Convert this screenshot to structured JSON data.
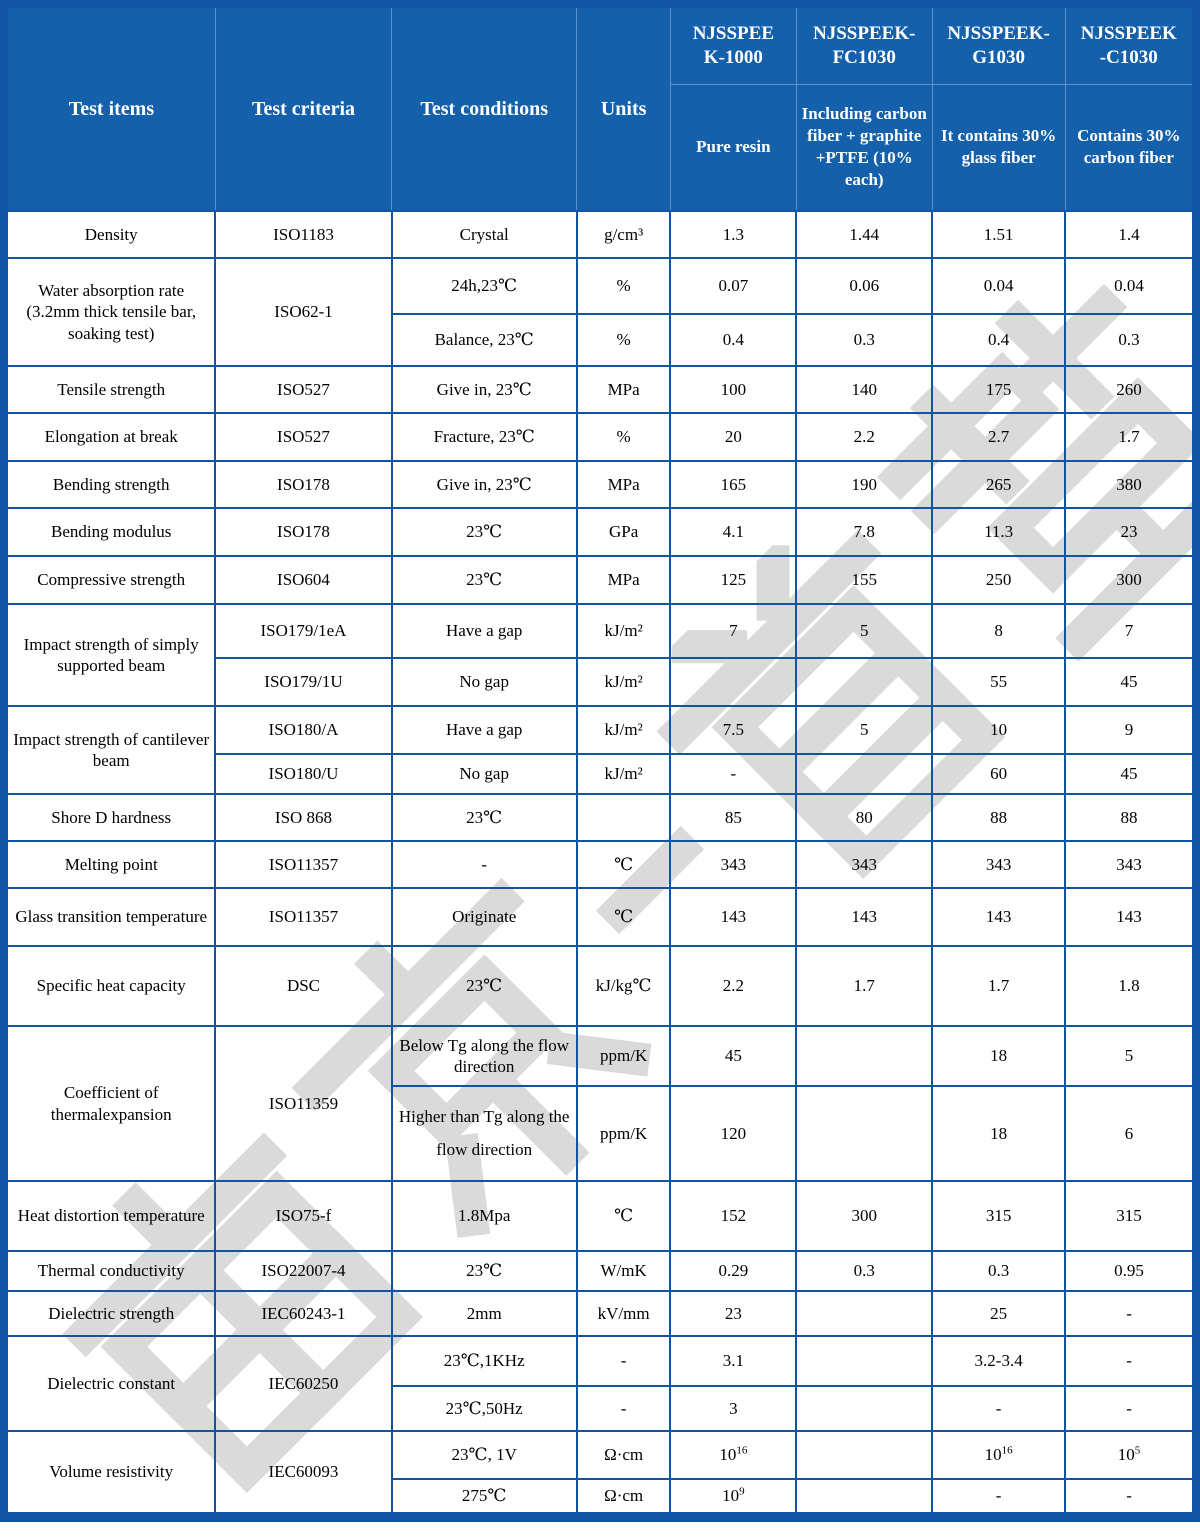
{
  "watermark": {
    "text": "南京-首塑",
    "color": "#d9d9d9"
  },
  "header": {
    "cols": [
      "Test items",
      "Test criteria",
      "Test conditions",
      "Units"
    ],
    "products": [
      {
        "name": [
          "NJSSPEE",
          "K-1000"
        ],
        "desc": "Pure resin"
      },
      {
        "name": [
          "NJSSPEEK-",
          "FC1030"
        ],
        "desc": "Including carbon fiber + graphite +PTFE (10% each)"
      },
      {
        "name": [
          "NJSSPEEK-",
          "G1030"
        ],
        "desc": "It contains 30% glass fiber"
      },
      {
        "name": [
          "NJSSPEEK",
          "-C1030"
        ],
        "desc": "Contains 30% carbon fiber"
      }
    ]
  },
  "rows": [
    {
      "item": "Density",
      "criteria": "ISO1183",
      "condition": "Crystal",
      "unit": "g/cm³",
      "values": [
        "1.3",
        "1.44",
        "1.51",
        "1.4"
      ]
    },
    {
      "item": "Water absorption rate (3.2mm thick tensile bar, soaking test)",
      "criteria": "ISO62-1",
      "condition": "24h,23℃",
      "unit": "%",
      "values": [
        "0.07",
        "0.06",
        "0.04",
        "0.04"
      ]
    },
    {
      "condition": "Balance, 23℃",
      "unit": "%",
      "values": [
        "0.4",
        "0.3",
        "0.4",
        "0.3"
      ]
    },
    {
      "item": "Tensile strength",
      "criteria": "ISO527",
      "condition": "Give in, 23℃",
      "unit": "MPa",
      "values": [
        "100",
        "140",
        "175",
        "260"
      ]
    },
    {
      "item": "Elongation at break",
      "criteria": "ISO527",
      "condition": "Fracture, 23℃",
      "unit": "%",
      "values": [
        "20",
        "2.2",
        "2.7",
        "1.7"
      ]
    },
    {
      "item": "Bending strength",
      "criteria": "ISO178",
      "condition": "Give in, 23℃",
      "unit": "MPa",
      "values": [
        "165",
        "190",
        "265",
        "380"
      ]
    },
    {
      "item": "Bending modulus",
      "criteria": "ISO178",
      "condition": "23℃",
      "unit": "GPa",
      "values": [
        "4.1",
        "7.8",
        "11.3",
        "23"
      ]
    },
    {
      "item": "Compressive strength",
      "criteria": "ISO604",
      "condition": "23℃",
      "unit": "MPa",
      "values": [
        "125",
        "155",
        "250",
        "300"
      ]
    },
    {
      "item": "Impact strength of simply supported beam",
      "criteria": "ISO179/1eA",
      "condition": "Have a gap",
      "unit": "kJ/m²",
      "values": [
        "7",
        "5",
        "8",
        "7"
      ]
    },
    {
      "criteria": "ISO179/1U",
      "condition": "No gap",
      "unit": "kJ/m²",
      "values": [
        "",
        "",
        "55",
        "45"
      ]
    },
    {
      "item": "Impact strength of cantilever beam",
      "criteria": "ISO180/A",
      "condition": "Have a gap",
      "unit": "kJ/m²",
      "values": [
        "7.5",
        "5",
        "10",
        "9"
      ]
    },
    {
      "criteria": "ISO180/U",
      "condition": "No gap",
      "unit": "kJ/m²",
      "values": [
        "-",
        "",
        "60",
        "45"
      ]
    },
    {
      "item": "Shore D hardness",
      "criteria": "ISO 868",
      "condition": "23℃",
      "unit": "",
      "values": [
        "85",
        "80",
        "88",
        "88"
      ]
    },
    {
      "item": "Melting point",
      "criteria": "ISO11357",
      "condition": "-",
      "unit": "℃",
      "values": [
        "343",
        "343",
        "343",
        "343"
      ]
    },
    {
      "item": "Glass transition temperature",
      "criteria": "ISO11357",
      "condition": "Originate",
      "unit": "℃",
      "values": [
        "143",
        "143",
        "143",
        "143"
      ]
    },
    {
      "item": "Specific heat capacity",
      "criteria": "DSC",
      "condition": "23℃",
      "unit": "kJ/kg℃",
      "values": [
        "2.2",
        "1.7",
        "1.7",
        "1.8"
      ]
    },
    {
      "item": "Coefficient of thermalexpansion",
      "criteria": "ISO11359",
      "condition": "Below Tg along the flow direction",
      "unit": "ppm/K",
      "values": [
        "45",
        "",
        "18",
        "5"
      ]
    },
    {
      "condition": "Higher than Tg along the flow direction",
      "unit": "ppm/K",
      "values": [
        "120",
        "",
        "18",
        "6"
      ]
    },
    {
      "item": "Heat distortion temperature",
      "criteria": "ISO75-f",
      "condition": "1.8Mpa",
      "unit": "℃",
      "values": [
        "152",
        "300",
        "315",
        "315"
      ]
    },
    {
      "item": "Thermal conductivity",
      "criteria": "ISO22007-4",
      "condition": "23℃",
      "unit": "W/mK",
      "values": [
        "0.29",
        "0.3",
        "0.3",
        "0.95"
      ]
    },
    {
      "item": "Dielectric strength",
      "criteria": "IEC60243-1",
      "condition": "2mm",
      "unit": "kV/mm",
      "values": [
        "23",
        "",
        "25",
        "-"
      ]
    },
    {
      "item": "Dielectric constant",
      "criteria": "IEC60250",
      "condition": "23℃,1KHz",
      "unit": "-",
      "values": [
        "3.1",
        "",
        "3.2-3.4",
        "-"
      ]
    },
    {
      "condition": "23℃,50Hz",
      "unit": "-",
      "values": [
        "3",
        "",
        "-",
        "-"
      ]
    },
    {
      "item": "Volume resistivity",
      "criteria": "IEC60093",
      "condition": "23℃, 1V",
      "unit": "Ω·cm",
      "values": [
        "10^16",
        "",
        "10^16",
        "10^5"
      ]
    },
    {
      "condition": "275℃",
      "unit": "Ω·cm",
      "values": [
        "10^9",
        "",
        "-",
        "-"
      ]
    }
  ]
}
